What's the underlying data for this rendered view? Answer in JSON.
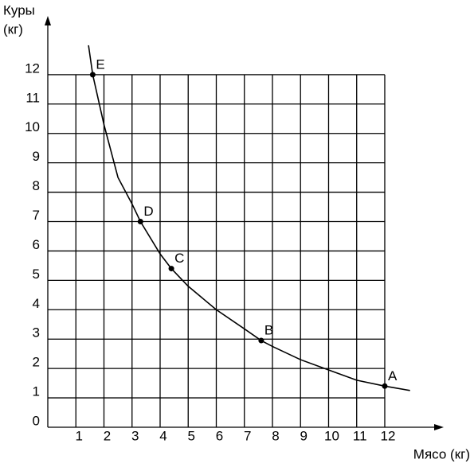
{
  "chart_data": {
    "type": "scatter",
    "x_label": "Мясо (кг)",
    "y_label": [
      "Куры",
      "(кг)"
    ],
    "xlim": [
      0,
      14.1
    ],
    "ylim": [
      0,
      14
    ],
    "xticks": [
      1,
      2,
      3,
      4,
      5,
      6,
      7,
      8,
      9,
      10,
      11,
      12
    ],
    "yticks": [
      0,
      1,
      2,
      3,
      4,
      5,
      6,
      7,
      8,
      9,
      10,
      11,
      12
    ],
    "grid": true,
    "series": [
      {
        "kind": "line",
        "color": "#000000",
        "x": [
          1.45,
          1.6,
          2,
          2.5,
          3,
          3.3,
          4,
          4.4,
          5,
          6,
          7,
          7.6,
          8,
          9,
          10,
          11,
          12,
          12.9
        ],
        "values": [
          13,
          12,
          10.3,
          8.5,
          7.6,
          7,
          5.9,
          5.4,
          4.8,
          4,
          3.35,
          2.95,
          2.75,
          2.3,
          1.95,
          1.6,
          1.4,
          1.25
        ]
      },
      {
        "kind": "points",
        "color": "#000000",
        "x": [
          12,
          7.6,
          4.4,
          3.3,
          1.6
        ],
        "values": [
          1.4,
          2.95,
          5.4,
          7,
          12
        ],
        "point_labels": [
          "A",
          "B",
          "C",
          "D",
          "E"
        ]
      }
    ]
  }
}
